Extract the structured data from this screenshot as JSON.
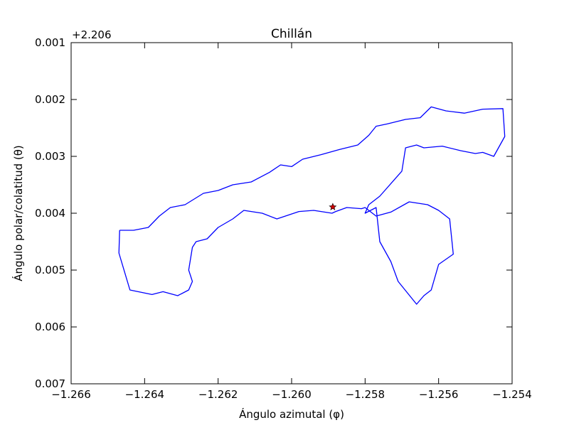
{
  "chart_data": {
    "type": "line",
    "title": "Chillán",
    "xlabel": "Ángulo azimutal (φ)",
    "ylabel": "Ángulo polar/colatitud (θ)",
    "y_offset_text": "+2.206",
    "xlim": [
      -1.266,
      -1.254
    ],
    "ylim": [
      0.001,
      0.007
    ],
    "y_inverted": true,
    "y_offset": 2.206,
    "x_ticks": [
      -1.266,
      -1.264,
      -1.262,
      -1.26,
      -1.258,
      -1.256,
      -1.254
    ],
    "x_tick_labels": [
      "−1.266",
      "−1.264",
      "−1.262",
      "−1.260",
      "−1.258",
      "−1.256",
      "−1.254"
    ],
    "y_ticks": [
      0.001,
      0.002,
      0.003,
      0.004,
      0.005,
      0.006,
      0.007
    ],
    "y_tick_labels": [
      "0.001",
      "0.002",
      "0.003",
      "0.004",
      "0.005",
      "0.006",
      "0.007"
    ],
    "grid": false,
    "series": [
      {
        "color": "#0000ff",
        "x": [
          -1.26468,
          -1.2643,
          -1.2639,
          -1.2636,
          -1.2633,
          -1.2629,
          -1.2624,
          -1.262,
          -1.2616,
          -1.2611,
          -1.2606,
          -1.2603,
          -1.26,
          -1.2597,
          -1.2592,
          -1.2587,
          -1.2582,
          -1.2579,
          -1.2577,
          -1.2574,
          -1.2569,
          -1.2565,
          -1.2562,
          -1.2558,
          -1.2553,
          -1.2548,
          -1.25425,
          -1.2542,
          -1.2545,
          -1.2548,
          -1.255,
          -1.2554,
          -1.2559,
          -1.2564,
          -1.2566,
          -1.2569,
          -1.257,
          -1.2576,
          -1.2579,
          -1.258,
          -1.2577,
          -1.2576,
          -1.2573,
          -1.2571,
          -1.2566,
          -1.2564,
          -1.2562,
          -1.256,
          -1.2556,
          -1.2557,
          -1.256,
          -1.2563,
          -1.2568,
          -1.2573,
          -1.2577,
          -1.258,
          -1.2581,
          -1.2585,
          -1.2588,
          -1.2589,
          -1.2594,
          -1.2598,
          -1.2604,
          -1.2608,
          -1.2613,
          -1.2616,
          -1.262,
          -1.2623,
          -1.2626,
          -1.2627,
          -1.2628,
          -1.2627,
          -1.2628,
          -1.2631,
          -1.2635,
          -1.2638,
          -1.2644,
          -1.2647,
          -1.26468
        ],
        "y": [
          0.0043,
          0.0043,
          0.00425,
          0.00405,
          0.0039,
          0.00385,
          0.00365,
          0.0036,
          0.0035,
          0.00345,
          0.00328,
          0.00315,
          0.00318,
          0.00305,
          0.00297,
          0.00288,
          0.0028,
          0.00263,
          0.00247,
          0.00243,
          0.00235,
          0.00232,
          0.00213,
          0.0022,
          0.00224,
          0.00217,
          0.00216,
          0.00265,
          0.003,
          0.00293,
          0.00295,
          0.0029,
          0.00282,
          0.00285,
          0.0028,
          0.00285,
          0.00326,
          0.0037,
          0.00385,
          0.004,
          0.0039,
          0.0045,
          0.00485,
          0.0052,
          0.0056,
          0.00545,
          0.00535,
          0.0049,
          0.00472,
          0.0041,
          0.00395,
          0.00385,
          0.0038,
          0.00398,
          0.00405,
          0.0039,
          0.00392,
          0.0039,
          0.00397,
          0.004,
          0.00395,
          0.00397,
          0.0041,
          0.004,
          0.00395,
          0.0041,
          0.00425,
          0.00445,
          0.0045,
          0.0046,
          0.005,
          0.0052,
          0.00535,
          0.00545,
          0.00538,
          0.00543,
          0.00535,
          0.0047,
          0.0043
        ]
      }
    ],
    "marker": {
      "x": -1.25888,
      "y": 0.00389,
      "symbol": "star",
      "color": "#cc0000"
    }
  }
}
